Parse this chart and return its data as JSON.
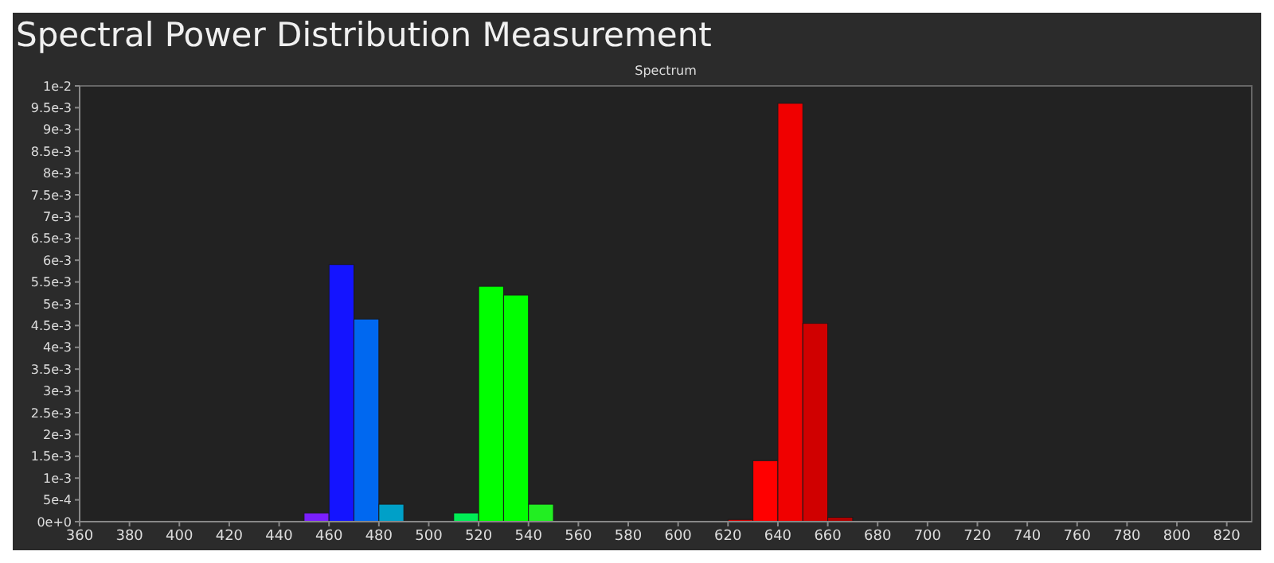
{
  "chart_data": {
    "type": "histogram",
    "title": "Spectral Power Distribution Measurement",
    "subtitle": "Spectrum",
    "bins": [
      450,
      460,
      470,
      480,
      490,
      500,
      510,
      520,
      530,
      540,
      550,
      560,
      570,
      580,
      590,
      600,
      610,
      620,
      630,
      640,
      650,
      660,
      670
    ],
    "values": [
      0.0002,
      0.0059,
      0.00465,
      0.0004,
      0,
      0,
      0.0002,
      0.0054,
      0.0052,
      0.0004,
      0,
      0,
      0,
      0,
      0,
      0,
      0,
      5e-05,
      0.0014,
      0.0096,
      0.00455,
      0.0001
    ],
    "colors": [
      "#7a1fff",
      "#1414ff",
      "#0068f0",
      "#00a0c8",
      "#00c8a0",
      "#00e070",
      "#00ee55",
      "#00ff00",
      "#00ff00",
      "#22ee22",
      "#66dd00",
      "#aacc00",
      "#ccaa00",
      "#dd8800",
      "#ee6600",
      "#f04400",
      "#f02200",
      "#d00000",
      "#ff0000",
      "#f00000",
      "#d00000",
      "#b00000"
    ],
    "xlim": [
      360,
      830
    ],
    "xticks": [
      360,
      380,
      400,
      420,
      440,
      460,
      480,
      500,
      520,
      540,
      560,
      580,
      600,
      620,
      640,
      660,
      680,
      700,
      720,
      740,
      760,
      780,
      800,
      820
    ],
    "ylim": [
      0,
      0.01
    ],
    "yticks": [
      {
        "value": 0,
        "label": "0e+0"
      },
      {
        "value": 0.0005,
        "label": "5e-4"
      },
      {
        "value": 0.001,
        "label": "1e-3"
      },
      {
        "value": 0.0015,
        "label": "1.5e-3"
      },
      {
        "value": 0.002,
        "label": "2e-3"
      },
      {
        "value": 0.0025,
        "label": "2.5e-3"
      },
      {
        "value": 0.003,
        "label": "3e-3"
      },
      {
        "value": 0.0035,
        "label": "3.5e-3"
      },
      {
        "value": 0.004,
        "label": "4e-3"
      },
      {
        "value": 0.0045,
        "label": "4.5e-3"
      },
      {
        "value": 0.005,
        "label": "5e-3"
      },
      {
        "value": 0.0055,
        "label": "5.5e-3"
      },
      {
        "value": 0.006,
        "label": "6e-3"
      },
      {
        "value": 0.0065,
        "label": "6.5e-3"
      },
      {
        "value": 0.007,
        "label": "7e-3"
      },
      {
        "value": 0.0075,
        "label": "7.5e-3"
      },
      {
        "value": 0.008,
        "label": "8e-3"
      },
      {
        "value": 0.0085,
        "label": "8.5e-3"
      },
      {
        "value": 0.009,
        "label": "9e-3"
      },
      {
        "value": 0.0095,
        "label": "9.5e-3"
      },
      {
        "value": 0.01,
        "label": "1e-2"
      }
    ]
  }
}
